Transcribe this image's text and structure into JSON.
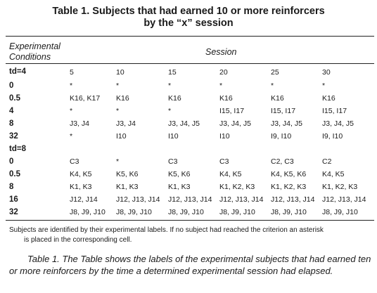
{
  "title_line1": "Table 1. Subjects that had earned 10 or more reinforcers",
  "title_line2": "by the “x” session",
  "header": {
    "conditions_line1": "Experimental",
    "conditions_line2": "Conditions",
    "session": "Session"
  },
  "groups": [
    {
      "label": "td=4",
      "sessions": [
        "5",
        "10",
        "15",
        "20",
        "25",
        "30"
      ],
      "rows": [
        {
          "cond": "0",
          "cells": [
            "*",
            "*",
            "*",
            "*",
            "*",
            "*"
          ]
        },
        {
          "cond": "0.5",
          "cells": [
            "K16, K17",
            "K16",
            "K16",
            "K16",
            "K16",
            "K16"
          ]
        },
        {
          "cond": "4",
          "cells": [
            "*",
            "*",
            "*",
            "I15, I17",
            "I15, I17",
            "I15, I17"
          ]
        },
        {
          "cond": "8",
          "cells": [
            "J3, J4",
            "J3, J4",
            "J3, J4, J5",
            "J3, J4, J5",
            "J3, J4, J5",
            "J3, J4, J5"
          ]
        },
        {
          "cond": "32",
          "cells": [
            "*",
            "I10",
            "I10",
            "I10",
            "I9, I10",
            "I9, I10"
          ]
        }
      ]
    },
    {
      "label": "td=8",
      "rows": [
        {
          "cond": "0",
          "cells": [
            "C3",
            "*",
            "C3",
            "C3",
            "C2, C3",
            "C2"
          ]
        },
        {
          "cond": "0.5",
          "cells": [
            "K4, K5",
            "K5, K6",
            "K5, K6",
            "K4, K5",
            "K4, K5, K6",
            "K4, K5"
          ]
        },
        {
          "cond": "8",
          "cells": [
            "K1, K3",
            "K1, K3",
            "K1, K3",
            "K1, K2, K3",
            "K1, K2, K3",
            "K1, K2, K3"
          ]
        },
        {
          "cond": "16",
          "cells": [
            "J12, J14",
            "J12, J13, J14",
            "J12, J13, J14",
            "J12, J13, J14",
            "J12, J13, J14",
            "J12, J13, J14"
          ]
        },
        {
          "cond": "32",
          "cells": [
            "J8, J9, J10",
            "J8, J9, J10",
            "J8, J9, J10",
            "J8, J9, J10",
            "J8, J9, J10",
            "J8, J9, J10"
          ]
        }
      ]
    }
  ],
  "note_line1": "Subjects are identified by their experimental labels. If no subject had reached the criterion an asterisk",
  "note_line2": "is placed in the corresponding cell.",
  "caption": "Table 1. The Table shows the labels of the experimental subjects that had earned ten or more reinforcers by the time a determined experimental session had elapsed."
}
